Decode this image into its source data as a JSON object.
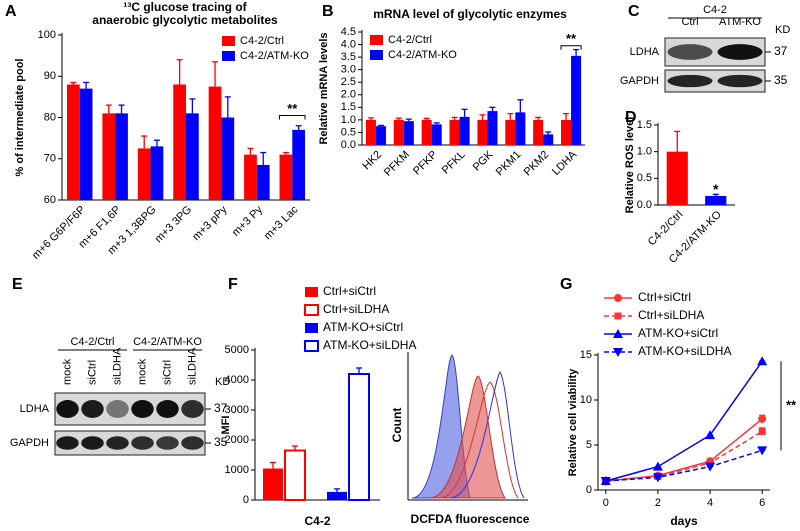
{
  "chart_data": [
    {
      "panel": "A",
      "type": "bar",
      "title": [
        "¹³C glucose tracing of",
        "anaerobic glycolytic metabolites"
      ],
      "ylabel": "% of intermediate pool",
      "categories": [
        "m+6 G6P/F6P",
        "m+6 F1,6P",
        "m+3 1,3BPG",
        "m+3 3PG",
        "m+3 pPy",
        "m+3 Py",
        "m+3 Lac"
      ],
      "series": [
        {
          "name": "C4-2/Ctrl",
          "color": "#ff0000",
          "values": [
            88,
            81,
            72.5,
            88,
            87.5,
            71,
            71
          ],
          "errors": [
            0.5,
            2,
            3,
            6,
            6,
            1.5,
            0.5
          ]
        },
        {
          "name": "C4-2/ATM-KO",
          "color": "#0000ff",
          "values": [
            87,
            81,
            73,
            81,
            80,
            68.5,
            77
          ],
          "errors": [
            1.5,
            2,
            1.5,
            3.5,
            5,
            3,
            1
          ]
        }
      ],
      "ylim": [
        60,
        100
      ],
      "yticks": [
        60,
        70,
        80,
        90,
        100
      ],
      "legend": "upper right",
      "annotations": [
        "**"
      ]
    },
    {
      "panel": "B",
      "type": "bar",
      "title": [
        "mRNA level of glycolytic enzymes"
      ],
      "ylabel": "Relative mRNA levels",
      "categories": [
        "HK2",
        "PFKM",
        "PFKP",
        "PFKL",
        "PGK",
        "PKM1",
        "PKM2",
        "LDHA"
      ],
      "series": [
        {
          "name": "C4-2/Ctrl",
          "color": "#ff0000",
          "values": [
            1,
            1,
            1,
            1,
            1,
            1,
            1,
            1
          ],
          "errors": [
            0.08,
            0.07,
            0.06,
            0.1,
            0.2,
            0.25,
            0.1,
            0.25
          ]
        },
        {
          "name": "C4-2/ATM-KO",
          "color": "#0000ff",
          "values": [
            0.75,
            0.95,
            0.82,
            1.12,
            1.35,
            1.3,
            0.42,
            3.55
          ],
          "errors": [
            0.03,
            0.08,
            0.06,
            0.3,
            0.15,
            0.5,
            0.1,
            0.25
          ]
        }
      ],
      "ylim": [
        0,
        4.5
      ],
      "yticks": [
        {
          "value": 0,
          "label": "0.0"
        },
        0.5,
        {
          "value": 1,
          "label": "1.0"
        },
        1.5,
        {
          "value": 2,
          "label": "2.0"
        },
        2.5,
        {
          "value": 3,
          "label": "3.0"
        },
        3.5,
        {
          "value": 4,
          "label": "4.0"
        },
        4.5
      ],
      "legend": "upper left",
      "annotations": [
        "**"
      ]
    },
    {
      "panel": "D",
      "type": "bar",
      "ylabel": "Relative ROS level",
      "categories": [
        "C4-2/Ctrl",
        "C4-2/ATM-KO"
      ],
      "values": [
        1.0,
        0.17
      ],
      "errors": [
        0.38,
        0.03
      ],
      "colors": [
        "#ff0000",
        "#0000ff"
      ],
      "ylim": [
        0,
        1.5
      ],
      "yticks": [
        {
          "value": 0,
          "label": "0.0"
        },
        0.5,
        {
          "value": 1,
          "label": "1.0"
        },
        1.5
      ],
      "annotations": [
        "*"
      ]
    },
    {
      "panel": "F",
      "type": "bar",
      "ylabel": "MFI",
      "xlabel": "C4-2",
      "series": [
        {
          "name": "Ctrl+siCtrl",
          "color": "#ff0000",
          "style": "solid",
          "values": [
            1050
          ],
          "errors": [
            200
          ]
        },
        {
          "name": "Ctrl+siLDHA",
          "color": "#ff0000",
          "style": "hollow",
          "values": [
            1650
          ],
          "errors": [
            150
          ]
        },
        {
          "name": "ATM-KO+siCtrl",
          "color": "#0000ff",
          "style": "solid",
          "values": [
            270
          ],
          "errors": [
            100
          ]
        },
        {
          "name": "ATM-KO+siLDHA",
          "color": "#0000ff",
          "style": "hollow",
          "values": [
            4200
          ],
          "errors": [
            200
          ]
        }
      ],
      "ylim": [
        0,
        5000
      ],
      "yticks": [
        0,
        1000,
        2000,
        3000,
        4000,
        5000
      ],
      "legend": "top",
      "inset_ylabel": "Count",
      "inset_xlabel": "DCFDA fluorescence"
    },
    {
      "panel": "G",
      "type": "line",
      "ylabel": "Relative cell viability",
      "xlabel": "days",
      "x": [
        0,
        2,
        4,
        6
      ],
      "xlim": [
        -0.3,
        6.3
      ],
      "xticks": [
        0,
        2,
        4,
        6
      ],
      "ylim": [
        0,
        15
      ],
      "yticks": [
        0,
        5,
        10,
        15
      ],
      "series": [
        {
          "name": "Ctrl+siCtrl",
          "color": "#ff3333",
          "dash": "solid",
          "marker": "circle",
          "values": [
            1,
            1.6,
            3.2,
            7.9
          ],
          "errors": [
            0,
            0,
            0.15,
            0.4
          ]
        },
        {
          "name": "Ctrl+siLDHA",
          "color": "#ff3333",
          "dash": "dashed",
          "marker": "square",
          "values": [
            1,
            1.5,
            3.0,
            6.5
          ],
          "errors": [
            0,
            0,
            0.1,
            0.4
          ]
        },
        {
          "name": "ATM-KO+siCtrl",
          "color": "#0000ff",
          "dash": "solid",
          "marker": "triangle",
          "values": [
            1,
            2.6,
            6.1,
            14.3
          ],
          "errors": [
            0,
            0,
            0,
            0
          ]
        },
        {
          "name": "ATM-KO+siLDHA",
          "color": "#0000ff",
          "dash": "dashed",
          "marker": "triangle-down",
          "values": [
            1,
            1.4,
            2.6,
            4.4
          ],
          "errors": [
            0,
            0,
            0,
            0
          ]
        }
      ],
      "legend": "top",
      "annotations": [
        "**"
      ]
    }
  ],
  "blots": [
    {
      "panel": "C",
      "groups": [
        "C4-2"
      ],
      "lanes": [
        "Ctrl",
        "ATM-KO"
      ],
      "rows": [
        "LDHA",
        "GAPDH"
      ],
      "markers": [
        "37",
        "35"
      ],
      "unit": "KD"
    },
    {
      "panel": "E",
      "groups": [
        "C4-2/Ctrl",
        "C4-2/ATM-KO"
      ],
      "lanes": [
        "mock",
        "siCtrl",
        "siLDHA",
        "mock",
        "siCtrl",
        "siLDHA"
      ],
      "rows": [
        "LDHA",
        "GAPDH"
      ],
      "markers": [
        "37",
        "35"
      ],
      "unit": "KD"
    }
  ]
}
